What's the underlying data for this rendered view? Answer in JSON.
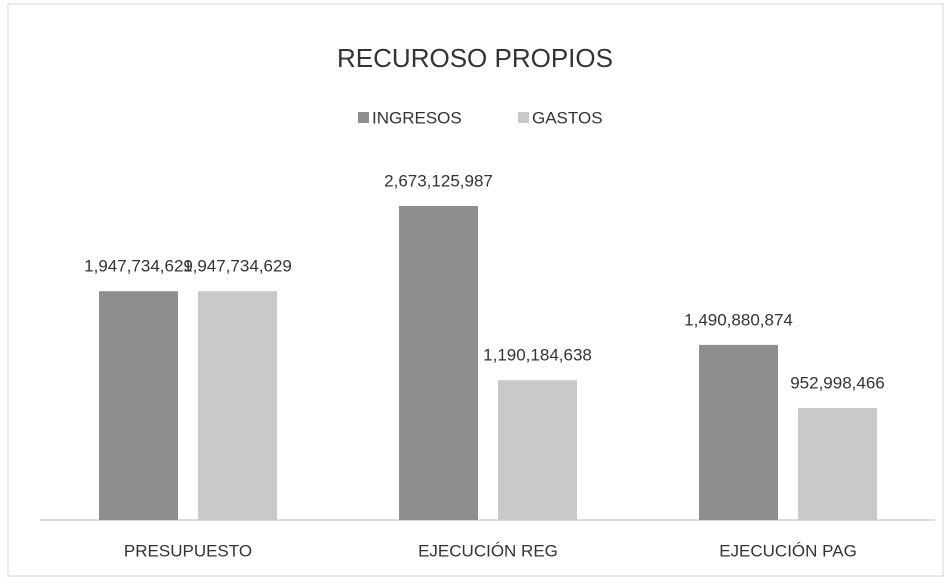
{
  "chart_data": {
    "type": "bar",
    "title": "RECUROSO PROPIOS",
    "categories": [
      "PRESUPUESTO",
      "EJECUCIÓN REG",
      "EJECUCIÓN PAG"
    ],
    "series": [
      {
        "name": "INGRESOS",
        "color": "#8e8e8e",
        "values": [
          1947734629,
          2673125987,
          1490880874
        ],
        "value_labels": [
          "1,947,734,629",
          "2,673,125,987",
          "1,490,880,874"
        ]
      },
      {
        "name": "GASTOS",
        "color": "#c9c9c9",
        "values": [
          1947734629,
          1190184638,
          952998466
        ],
        "value_labels": [
          "1,947,734,629",
          "1,190,184,638",
          "952,998,466"
        ]
      }
    ],
    "legend": "top"
  }
}
